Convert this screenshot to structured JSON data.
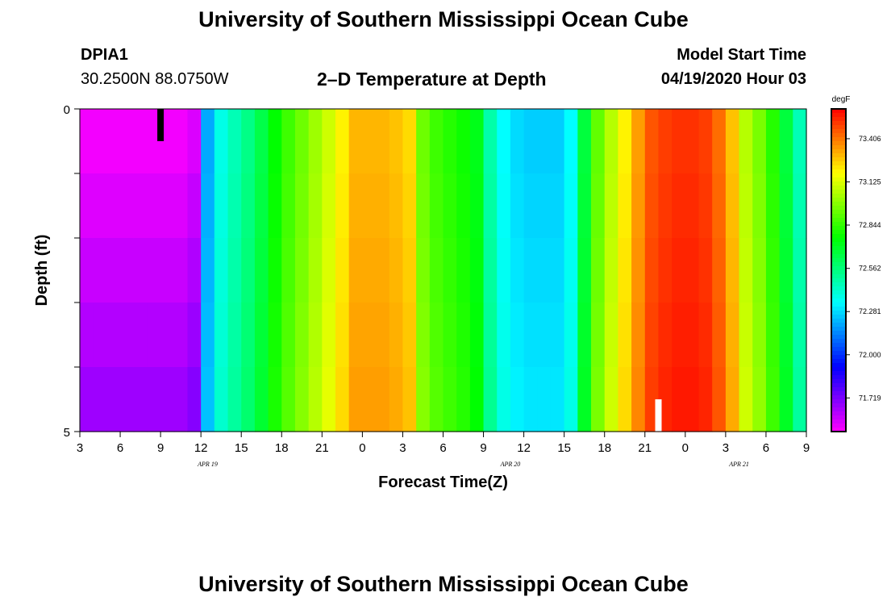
{
  "page": {
    "title_top": "University of Southern Mississippi Ocean Cube",
    "title_bottom": "University of Southern Mississippi Ocean Cube",
    "station_id": "DPIA1",
    "station_coords": "30.2500N 88.0750W",
    "plot_title": "2–D Temperature at Depth",
    "model_start_label": "Model Start Time",
    "model_start_value": "04/19/2020 Hour 03"
  },
  "chart_data": {
    "type": "heatmap",
    "title": "2–D Temperature at Depth",
    "xlabel": "Forecast Time(Z)",
    "ylabel": "Depth (ft)",
    "colorbar_unit": "degF",
    "colorbar_ticks": [
      71.719,
      72.0,
      72.281,
      72.562,
      72.844,
      73.125,
      73.406
    ],
    "colorbar_range": [
      71.5,
      73.6
    ],
    "x_start_hour": 3,
    "x_hours": 54,
    "x_tick_labels": [
      "3",
      "6",
      "9",
      "12",
      "15",
      "18",
      "21",
      "0",
      "3",
      "6",
      "9",
      "12",
      "15",
      "18",
      "21",
      "0",
      "3",
      "6",
      "9"
    ],
    "date_labels": [
      {
        "text": "APR  19",
        "hour_offset": 9.5
      },
      {
        "text": "APR  20",
        "hour_offset": 32
      },
      {
        "text": "APR  21",
        "hour_offset": 49
      }
    ],
    "y_tick_labels": [
      "0",
      "5"
    ],
    "ylim": [
      0,
      5
    ],
    "depth_rows": 5,
    "temperatures_by_hour": [
      71.52,
      71.52,
      71.52,
      71.52,
      71.52,
      71.52,
      71.52,
      71.52,
      71.56,
      72.2,
      72.38,
      72.46,
      72.54,
      72.64,
      72.76,
      72.86,
      72.94,
      73.02,
      73.1,
      73.2,
      73.3,
      73.3,
      73.3,
      73.28,
      73.24,
      72.94,
      72.86,
      72.82,
      72.78,
      72.72,
      72.48,
      72.34,
      72.28,
      72.26,
      72.26,
      72.26,
      72.34,
      72.66,
      72.92,
      73.06,
      73.2,
      73.34,
      73.46,
      73.5,
      73.52,
      73.52,
      73.5,
      73.42,
      73.28,
      73.06,
      72.96,
      72.82,
      72.66,
      72.46
    ],
    "markers": [
      {
        "hour_offset": 6,
        "color": "#000000"
      },
      {
        "hour_offset": 43,
        "color": "#ffffff"
      }
    ]
  }
}
